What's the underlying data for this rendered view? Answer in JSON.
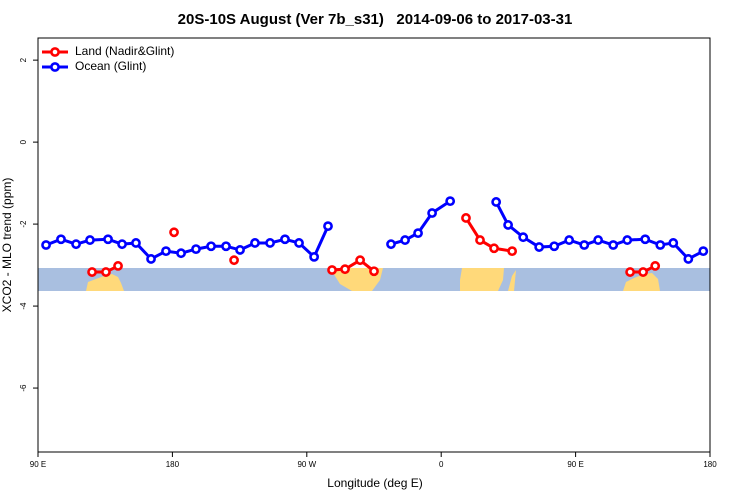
{
  "chart_data": {
    "type": "line",
    "title": "20S-10S August (Ver 7b_s31)   2014-09-06 to 2017-03-31",
    "xlabel": "Longitude (deg E)",
    "ylabel": "XCO2 - MLO trend (ppm)",
    "xlim": [
      90,
      540
    ],
    "ylim": [
      -7.56,
      2.54
    ],
    "xticks": [
      {
        "value": 90,
        "label": "90 E"
      },
      {
        "value": 180,
        "label": "180"
      },
      {
        "value": 270,
        "label": "90 W"
      },
      {
        "value": 360,
        "label": "0"
      },
      {
        "value": 450,
        "label": "90 E"
      },
      {
        "value": 540,
        "label": "180"
      }
    ],
    "yticks": [
      -6,
      -4,
      -2,
      0,
      2
    ],
    "legend": "top-left",
    "series": [
      {
        "name": "Land (Nadir&Glint)",
        "color": "#ff0000",
        "x": [
          126.2,
          135.5,
          143.6,
          null,
          181.1,
          null,
          221.3,
          null,
          286.9,
          295.6,
          305.7,
          315.0,
          null,
          376.6,
          386.0,
          395.4,
          407.5,
          null,
          486.5,
          495.2,
          503.3
        ],
        "values": [
          -3.17,
          -3.17,
          -3.02,
          null,
          -2.2,
          null,
          -2.88,
          null,
          -3.12,
          -3.1,
          -2.88,
          -3.15,
          null,
          -1.85,
          -2.39,
          -2.59,
          -2.66,
          null,
          -3.17,
          -3.17,
          -3.02
        ]
      },
      {
        "name": "Ocean (Glint)",
        "color": "#0000ff",
        "x": [
          95.4,
          105.4,
          115.5,
          124.8,
          136.9,
          146.3,
          155.6,
          165.7,
          175.7,
          185.8,
          195.8,
          205.9,
          215.9,
          225.3,
          235.3,
          245.4,
          255.4,
          264.8,
          274.9,
          284.2,
          null,
          326.4,
          335.8,
          344.5,
          353.9,
          366.0,
          null,
          396.8,
          404.8,
          414.9,
          425.6,
          435.7,
          445.7,
          455.8,
          465.1,
          475.2,
          484.6,
          496.6,
          506.7,
          515.4,
          525.5,
          535.5
        ],
        "values": [
          -2.51,
          -2.37,
          -2.49,
          -2.39,
          -2.37,
          -2.49,
          -2.46,
          -2.85,
          -2.66,
          -2.71,
          -2.61,
          -2.54,
          -2.54,
          -2.63,
          -2.46,
          -2.46,
          -2.37,
          -2.46,
          -2.8,
          -2.05,
          null,
          -2.49,
          -2.39,
          -2.22,
          -1.73,
          -1.44,
          null,
          -1.46,
          -2.02,
          -2.32,
          -2.56,
          -2.54,
          -2.39,
          -2.51,
          -2.39,
          -2.51,
          -2.39,
          -2.37,
          -2.51,
          -2.46,
          -2.85,
          -2.66
        ]
      }
    ]
  }
}
